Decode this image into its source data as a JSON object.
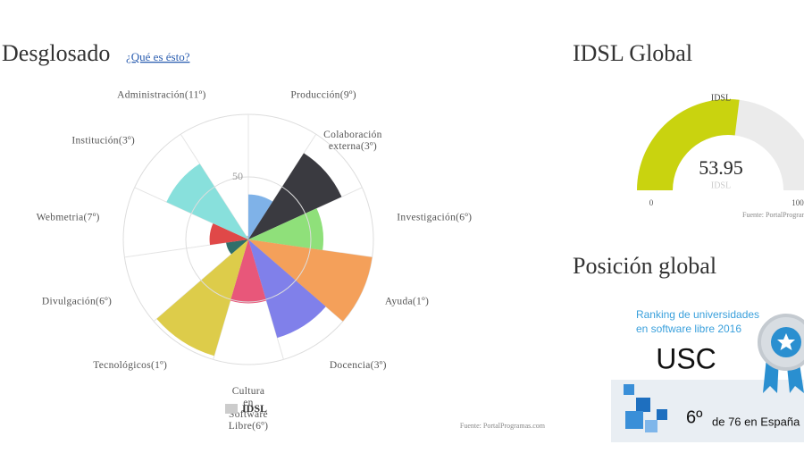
{
  "page": {
    "breakdown_title": "Desglosado",
    "help_link": "¿Qué es ésto?",
    "global_title": "IDSL Global",
    "position_title": "Posición global",
    "source": "Fuente: PortalProgramas.com"
  },
  "chart_data": [
    {
      "type": "polarArea",
      "categories": [
        "Producción(9º)",
        [
          "Colaboración",
          "externa(3º)"
        ],
        "Investigación(6º)",
        "Ayuda(1º)",
        "Docencia(3º)",
        [
          "Cultura",
          "en",
          "Software",
          "Libre(6º)"
        ],
        "Tecnológicos(1º)",
        "Divulgación(6º)",
        "Webmetria(7º)",
        "Institución(3º)",
        "Administración(11º)"
      ],
      "series": [
        {
          "name": "IDSL",
          "color": "#cccccc",
          "values": [
            36,
            82,
            60,
            100,
            82,
            51,
            97,
            18,
            31,
            72,
            3
          ],
          "colors": [
            "#7fb2e8",
            "#3a3a40",
            "#8fe07a",
            "#f4a05a",
            "#8080ea",
            "#e8577a",
            "#ddcc4a",
            "#2f6f6a",
            "#e04848",
            "#88e0dc",
            "#c0c0c0"
          ]
        }
      ],
      "rlim": [
        0,
        100
      ],
      "rticks": [
        50
      ]
    },
    {
      "type": "gauge",
      "title": "IDSL",
      "value": 53.95,
      "subtitle": "IDSL",
      "lim": [
        0,
        100
      ],
      "ticks": [
        0,
        100
      ],
      "color": "#c9d30f",
      "track_color": "#ebebeb",
      "source": "Fuente: PortalProgramas.com"
    }
  ],
  "ranking": {
    "title_lines": [
      "Ranking de universidades",
      "en software libre 2016"
    ],
    "university": "USC",
    "position": "6º",
    "total": "de 76 en España"
  }
}
